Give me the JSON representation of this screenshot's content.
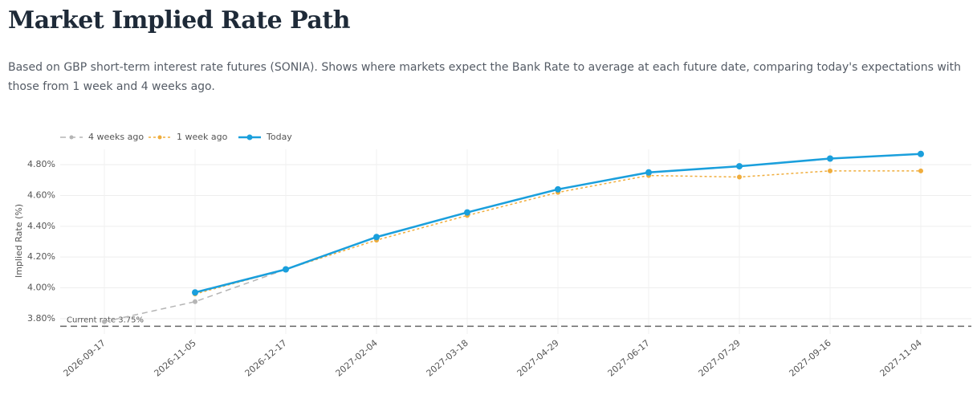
{
  "chart_data": {
    "type": "line",
    "title": "Market Implied Rate Path",
    "subtitle": "Based on GBP short-term interest rate futures (SONIA). Shows where markets expect the Bank Rate to average at each future date, comparing today's expectations with those from 1 week and 4 weeks ago.",
    "y_label": "Implied Rate (%)",
    "categories": [
      "2026-09-17",
      "2026-11-05",
      "2026-12-17",
      "2027-02-04",
      "2027-03-18",
      "2027-04-29",
      "2027-06-17",
      "2027-07-29",
      "2027-09-16",
      "2027-11-04"
    ],
    "series": [
      {
        "name": "4 weeks ago",
        "color": "#b5b5b5",
        "dash": "7,5",
        "width": 1.5,
        "marker": 3,
        "values": [
          3.78,
          3.91,
          4.12,
          null,
          null,
          null,
          null,
          null,
          null,
          null
        ]
      },
      {
        "name": "1 week ago",
        "color": "#f0ad3c",
        "dash": "3,3",
        "width": 1.5,
        "marker": 3,
        "values": [
          null,
          3.96,
          4.12,
          4.31,
          4.47,
          4.62,
          4.73,
          4.72,
          4.76,
          4.76
        ]
      },
      {
        "name": "Today",
        "color": "#1a9fdc",
        "dash": "",
        "width": 2.5,
        "marker": 4,
        "values": [
          null,
          3.97,
          4.12,
          4.33,
          4.49,
          4.64,
          4.75,
          4.79,
          4.84,
          4.87
        ]
      }
    ],
    "ylim": [
      3.7,
      4.9
    ],
    "yticks": [
      {
        "value": 3.8,
        "label": "3.80%"
      },
      {
        "value": 4.0,
        "label": "4.00%"
      },
      {
        "value": 4.2,
        "label": "4.20%"
      },
      {
        "value": 4.4,
        "label": "4.40%"
      },
      {
        "value": 4.6,
        "label": "4.60%"
      },
      {
        "value": 4.8,
        "label": "4.80%"
      }
    ],
    "reference_line": {
      "value": 3.75,
      "label": "Current rate 3.75%"
    },
    "grid": true,
    "legend": "top-left"
  }
}
